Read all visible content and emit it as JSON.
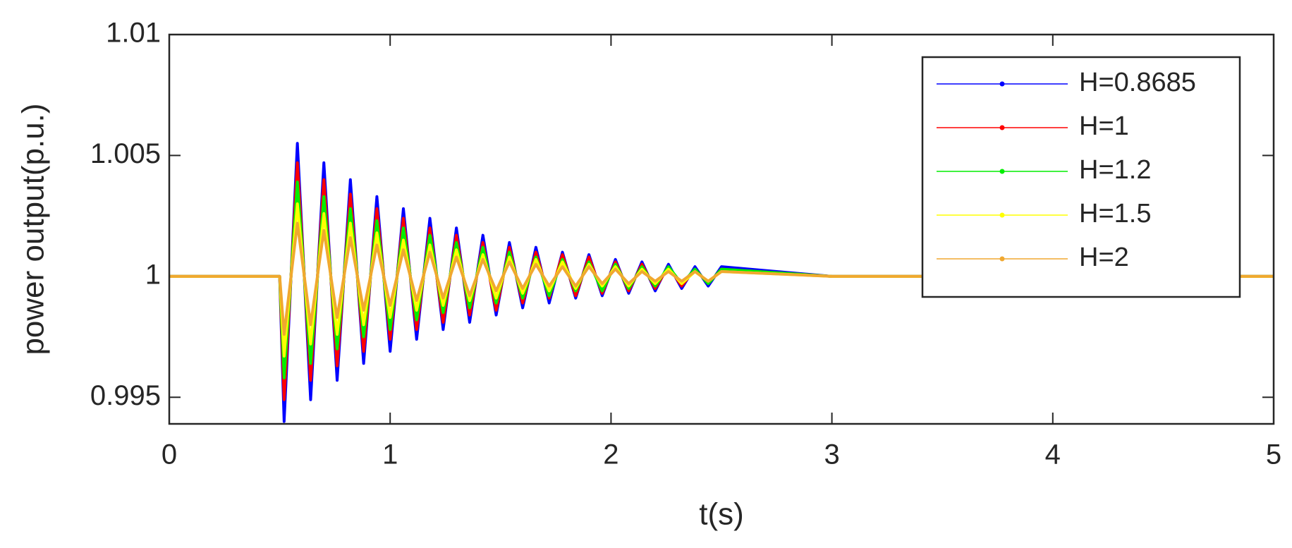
{
  "chart_data": {
    "type": "line",
    "x_label": "t(s)",
    "y_label": "power output(p.u.)",
    "x": [
      0,
      0.5,
      0.52,
      0.58,
      0.64,
      0.7,
      0.76,
      0.82,
      0.88,
      0.94,
      1,
      1.06,
      1.12,
      1.18,
      1.24,
      1.3,
      1.36,
      1.42,
      1.48,
      1.54,
      1.6,
      1.66,
      1.72,
      1.78,
      1.84,
      1.9,
      1.96,
      2.02,
      2.08,
      2.14,
      2.2,
      2.26,
      2.32,
      2.38,
      2.44,
      2.5,
      3,
      3.5,
      5
    ],
    "series": [
      {
        "name": "H=0.8685",
        "color": "#0000ff",
        "values": [
          1,
          1,
          0.994,
          1.0055,
          0.9949,
          1.0047,
          0.9957,
          1.004,
          0.9964,
          1.0033,
          0.9969,
          1.0028,
          0.9974,
          1.0024,
          0.9978,
          1.002,
          0.9981,
          1.0017,
          0.9984,
          1.0014,
          0.9987,
          1.0012,
          0.9989,
          1.001,
          0.9991,
          1.0009,
          0.9992,
          1.0007,
          0.9993,
          1.0006,
          0.9994,
          1.0005,
          0.9995,
          1.0004,
          0.9996,
          1.0004,
          1,
          1,
          1
        ]
      },
      {
        "name": "H=1",
        "color": "#ff0000",
        "values": [
          1,
          1,
          0.9949,
          1.0047,
          0.9957,
          1.004,
          0.9963,
          1.0034,
          0.9969,
          1.0028,
          0.9974,
          1.0024,
          0.9978,
          1.002,
          0.9981,
          1.0017,
          0.9984,
          1.0014,
          0.9986,
          1.0012,
          0.9989,
          1.001,
          0.9991,
          1.0009,
          0.9992,
          1.0008,
          0.9993,
          1.0006,
          0.9994,
          1.0005,
          0.9995,
          1.0004,
          0.9996,
          1.0003,
          0.9997,
          1.0003,
          1,
          1,
          1
        ]
      },
      {
        "name": "H=1.2",
        "color": "#00ee00",
        "values": [
          1,
          1,
          0.9958,
          1.0039,
          0.9964,
          1.0033,
          0.997,
          1.0028,
          0.9975,
          1.0023,
          0.9978,
          1.002,
          0.9982,
          1.0017,
          0.9985,
          1.0014,
          0.9987,
          1.0012,
          0.9989,
          1.001,
          0.9991,
          1.0008,
          0.9992,
          1.0007,
          0.9994,
          1.0006,
          0.9994,
          1.0005,
          0.9995,
          1.0004,
          0.9996,
          1.0004,
          0.9997,
          1.0003,
          0.9997,
          1.0003,
          1,
          1,
          1
        ]
      },
      {
        "name": "H=1.5",
        "color": "#ffff00",
        "values": [
          1,
          1,
          0.9967,
          1.003,
          0.9972,
          1.0026,
          0.9976,
          1.0022,
          0.998,
          1.0018,
          0.9983,
          1.0015,
          0.9986,
          1.0013,
          0.9988,
          1.0011,
          0.999,
          1.0009,
          0.9991,
          1.0008,
          0.9993,
          1.0007,
          0.9994,
          1.0006,
          0.9995,
          1.0005,
          0.9996,
          1.0004,
          0.9996,
          1.0003,
          0.9997,
          1.0003,
          0.9997,
          1.0002,
          0.9998,
          1.0002,
          1,
          1,
          1
        ]
      },
      {
        "name": "H=2",
        "color": "#f0a830",
        "values": [
          1,
          1,
          0.9976,
          1.0022,
          0.998,
          1.0019,
          0.9983,
          1.0016,
          0.9986,
          1.0013,
          0.9988,
          1.0011,
          0.999,
          1.001,
          0.9991,
          1.0008,
          0.9992,
          1.0007,
          0.9994,
          1.0006,
          0.9995,
          1.0005,
          0.9996,
          1.0004,
          0.9996,
          1.0004,
          0.9997,
          1.0003,
          0.9997,
          1.0002,
          0.9998,
          1.0002,
          0.9998,
          1.0002,
          0.9998,
          1.0002,
          1,
          1,
          1
        ]
      }
    ],
    "xlim": [
      0,
      5
    ],
    "xticks": [
      0,
      1,
      2,
      3,
      4,
      5
    ],
    "ylim": [
      0.9939,
      1.01
    ],
    "yticks": [
      0.995,
      1,
      1.005,
      1.01
    ],
    "grid": false,
    "legend": "northeast"
  }
}
